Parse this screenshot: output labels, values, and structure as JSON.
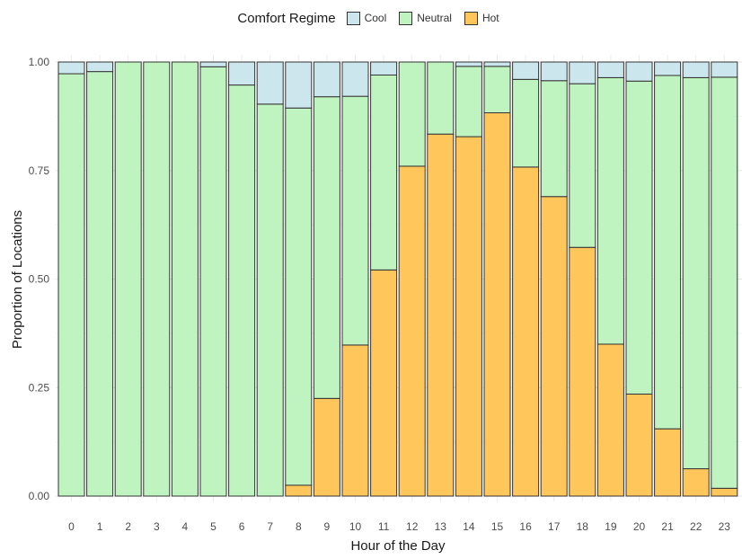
{
  "chart_data": {
    "type": "bar",
    "stacked": true,
    "xlabel": "Hour of the Day",
    "ylabel": "Proportion of Locations",
    "ylim": [
      0,
      1
    ],
    "yticks": [
      "0.00",
      "0.25",
      "0.50",
      "0.75",
      "1.00"
    ],
    "ytick_values": [
      0,
      0.25,
      0.5,
      0.75,
      1
    ],
    "categories": [
      "0",
      "1",
      "2",
      "3",
      "4",
      "5",
      "6",
      "7",
      "8",
      "9",
      "10",
      "11",
      "12",
      "13",
      "14",
      "15",
      "16",
      "17",
      "18",
      "19",
      "20",
      "21",
      "22",
      "23"
    ],
    "legend": {
      "title": "Comfort Regime",
      "position": "top",
      "items": [
        "Cool",
        "Neutral",
        "Hot"
      ]
    },
    "series": [
      {
        "name": "Hot",
        "color": "#FFC65C",
        "values": [
          0,
          0,
          0,
          0,
          0,
          0,
          0,
          0,
          0.025,
          0.225,
          0.348,
          0.521,
          0.76,
          0.834,
          0.828,
          0.883,
          0.758,
          0.69,
          0.573,
          0.35,
          0.235,
          0.155,
          0.063,
          0.018
        ]
      },
      {
        "name": "Neutral",
        "color": "#BFF3BF",
        "values": [
          0.973,
          0.978,
          1,
          1,
          1,
          0.989,
          0.947,
          0.903,
          0.869,
          0.695,
          0.573,
          0.449,
          0.24,
          0.166,
          0.162,
          0.107,
          0.202,
          0.267,
          0.377,
          0.614,
          0.721,
          0.814,
          0.901,
          0.947
        ]
      },
      {
        "name": "Cool",
        "color": "#CCE6EE",
        "values": [
          0.027,
          0.022,
          0,
          0,
          0,
          0.011,
          0.053,
          0.097,
          0.106,
          0.08,
          0.079,
          0.03,
          0,
          0,
          0.01,
          0.01,
          0.04,
          0.043,
          0.05,
          0.036,
          0.044,
          0.031,
          0.036,
          0.035
        ]
      }
    ],
    "grid": true
  }
}
